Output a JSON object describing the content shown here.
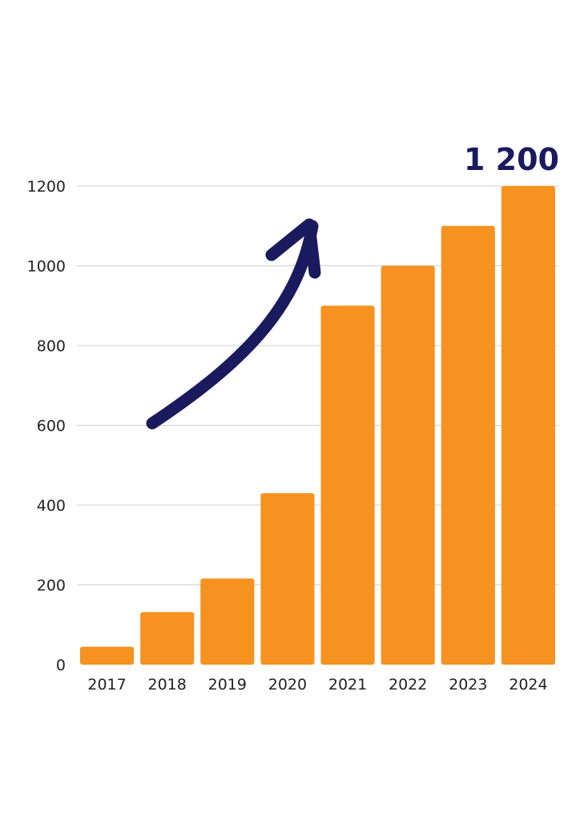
{
  "colors": {
    "bar": "#F69220",
    "grid": "#D0D0D0",
    "arrow": "#1A1A5E",
    "highlight": "#1A1A5E",
    "text": "#222222"
  },
  "chart_data": {
    "type": "bar",
    "title": "",
    "xlabel": "",
    "ylabel": "",
    "categories": [
      "2017",
      "2018",
      "2019",
      "2020",
      "2021",
      "2022",
      "2023",
      "2024"
    ],
    "values": [
      45,
      132,
      216,
      430,
      900,
      1000,
      1100,
      1200
    ],
    "ylim": [
      0,
      1200
    ],
    "yticks": [
      "0",
      "200",
      "400",
      "600",
      "800",
      "1000",
      "1200"
    ],
    "grid": true,
    "legend": "none",
    "highlight_label": "1 200",
    "annotation": "upward-trend-arrow"
  }
}
